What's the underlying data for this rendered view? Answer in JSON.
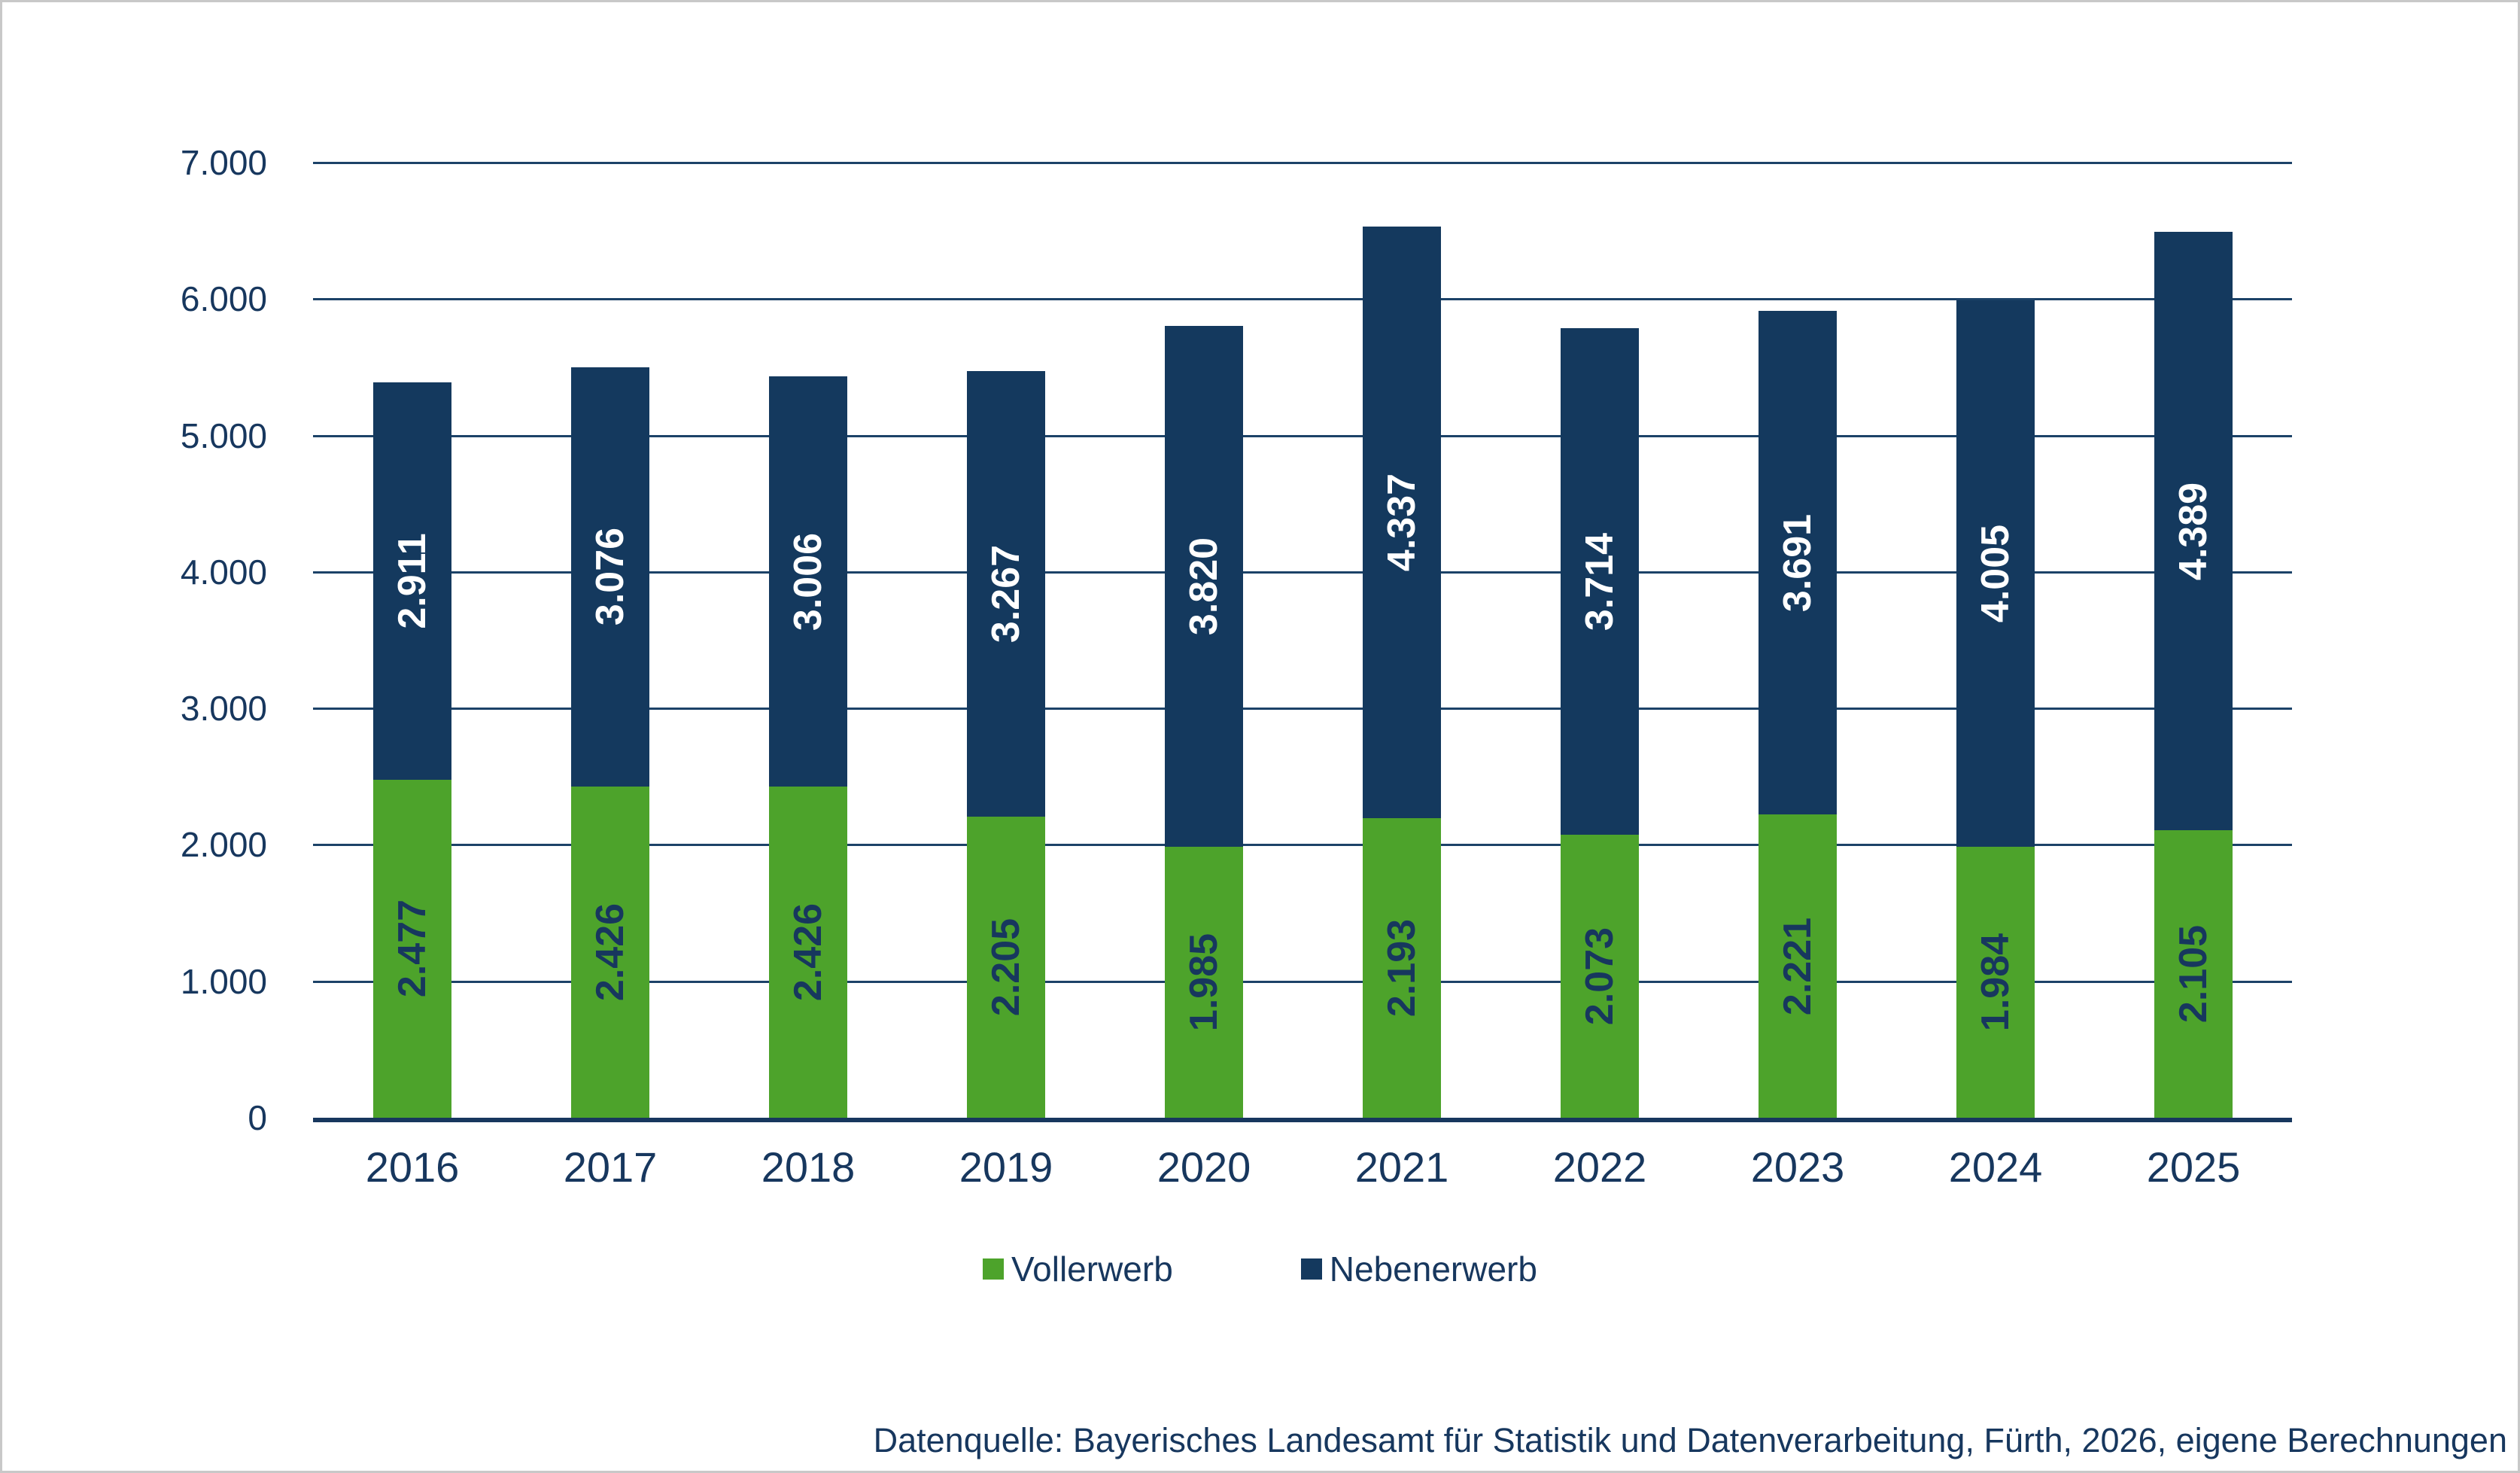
{
  "chart_data": {
    "type": "bar",
    "stacked": true,
    "categories": [
      "2016",
      "2017",
      "2018",
      "2019",
      "2020",
      "2021",
      "2022",
      "2023",
      "2024",
      "2025"
    ],
    "series": [
      {
        "name": "Vollerwerb",
        "color": "#4DA32B",
        "label_color": "#17375E",
        "values": [
          2477,
          2426,
          2426,
          2205,
          1985,
          2193,
          2073,
          2221,
          1984,
          2105
        ],
        "labels": [
          "2.477",
          "2.426",
          "2.426",
          "2.205",
          "1.985",
          "2.193",
          "2.073",
          "2.221",
          "1.984",
          "2.105"
        ]
      },
      {
        "name": "Nebenerwerb",
        "color": "#14395E",
        "label_color": "#FFFFFF",
        "values": [
          2911,
          3076,
          3006,
          3267,
          3820,
          4337,
          3714,
          3691,
          4005,
          4389
        ],
        "labels": [
          "2.911",
          "3.076",
          "3.006",
          "3.267",
          "3.820",
          "4.337",
          "3.714",
          "3.691",
          "4.005",
          "4.389"
        ]
      }
    ],
    "y_axis": {
      "min": 0,
      "max": 7000,
      "step": 1000,
      "tick_labels": [
        "0",
        "1.000",
        "2.000",
        "3.000",
        "4.000",
        "5.000",
        "6.000",
        "7.000"
      ]
    },
    "grid": true,
    "legend_position": "bottom"
  },
  "legend": {
    "items": [
      {
        "label": "Vollerwerb",
        "color": "#4DA32B"
      },
      {
        "label": "Nebenerwerb",
        "color": "#14395E"
      }
    ]
  },
  "source_note": "Datenquelle: Bayerisches Landesamt für Statistik und Datenverarbeitung, Fürth, 2026, eigene Berechnungen",
  "colors": {
    "text_navy": "#17375E",
    "gridline_navy": "#1C4268",
    "bar_navy": "#14395E",
    "bar_green": "#4DA32B"
  }
}
